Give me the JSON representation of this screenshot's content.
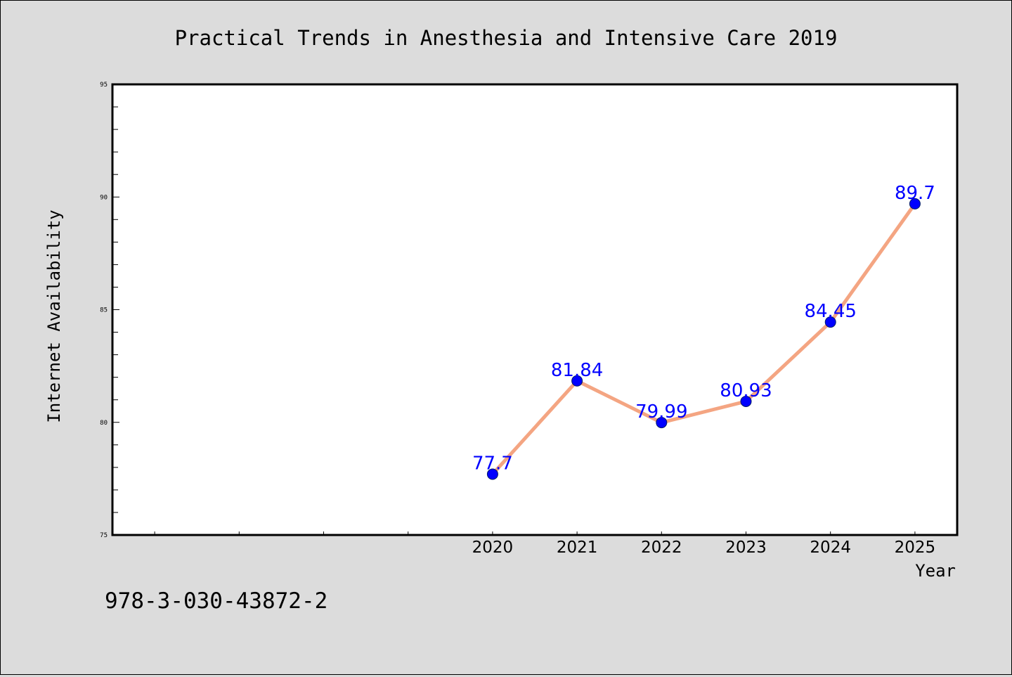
{
  "chart_data": {
    "type": "line",
    "title": "Practical Trends in Anesthesia and Intensive Care 2019",
    "xlabel": "Year",
    "ylabel": "Internet Availability",
    "x": [
      2020,
      2021,
      2022,
      2023,
      2024,
      2025
    ],
    "series": [
      {
        "values": [
          77.7,
          81.84,
          79.99,
          80.93,
          84.45,
          89.7
        ],
        "labels": [
          "77.7",
          "81.84",
          "79.99",
          "80.93",
          "84.45",
          "89.7"
        ]
      }
    ],
    "ylim": [
      75,
      95
    ],
    "yticks": [
      75,
      80,
      85,
      90,
      95
    ],
    "ytick_labels": [
      "75",
      "80",
      "85",
      "90",
      "95"
    ],
    "xlim": [
      2015.5,
      2025.5
    ],
    "xtick_labels": [
      "2020",
      "2021",
      "2022",
      "2023",
      "2024",
      "2025"
    ],
    "grid": false,
    "colors": {
      "line": "#f4a582",
      "marker": "#0000ff",
      "data_label": "#0000ff",
      "background": "#dcdcdc",
      "plot_background": "#ffffff"
    }
  },
  "footer_text": "978-3-030-43872-2"
}
